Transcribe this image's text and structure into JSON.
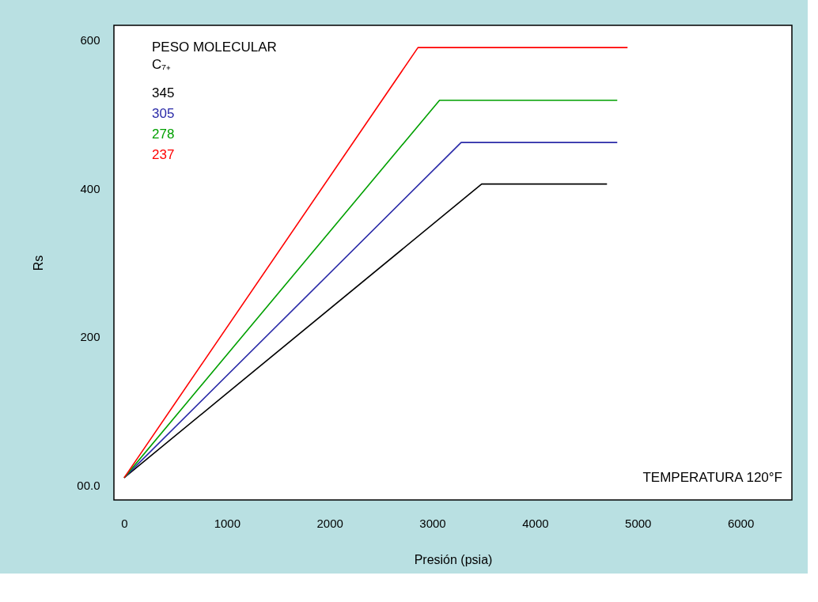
{
  "chart_data": {
    "type": "line",
    "xlabel": "Presión (psia)",
    "ylabel": "Rs",
    "legend_title": "PESO MOLECULAR\nC₇₊",
    "legend": "top left",
    "grid": false,
    "marker": "none",
    "line_style": "solid",
    "xlim": [
      -100,
      6500
    ],
    "xticks": [
      0,
      1000,
      2000,
      3000,
      4000,
      5000,
      6000
    ],
    "ylim": [
      -20,
      620
    ],
    "yticks": [
      {
        "value": 0,
        "label": "00.0"
      },
      200,
      400,
      600
    ],
    "annotations": [
      "TEMPERATURA 120°F"
    ],
    "series": [
      {
        "name": "345",
        "color": "#000000",
        "x": [
          0,
          3480,
          4700
        ],
        "values": [
          10,
          406,
          406
        ]
      },
      {
        "name": "305",
        "color": "#2a2aa8",
        "x": [
          0,
          3280,
          4800
        ],
        "values": [
          10,
          462,
          462
        ]
      },
      {
        "name": "278",
        "color": "#00a000",
        "x": [
          0,
          3070,
          4800
        ],
        "values": [
          10,
          519,
          519
        ]
      },
      {
        "name": "237",
        "color": "#ff0000",
        "x": [
          0,
          2860,
          4900
        ],
        "values": [
          10,
          590,
          590
        ]
      }
    ]
  }
}
